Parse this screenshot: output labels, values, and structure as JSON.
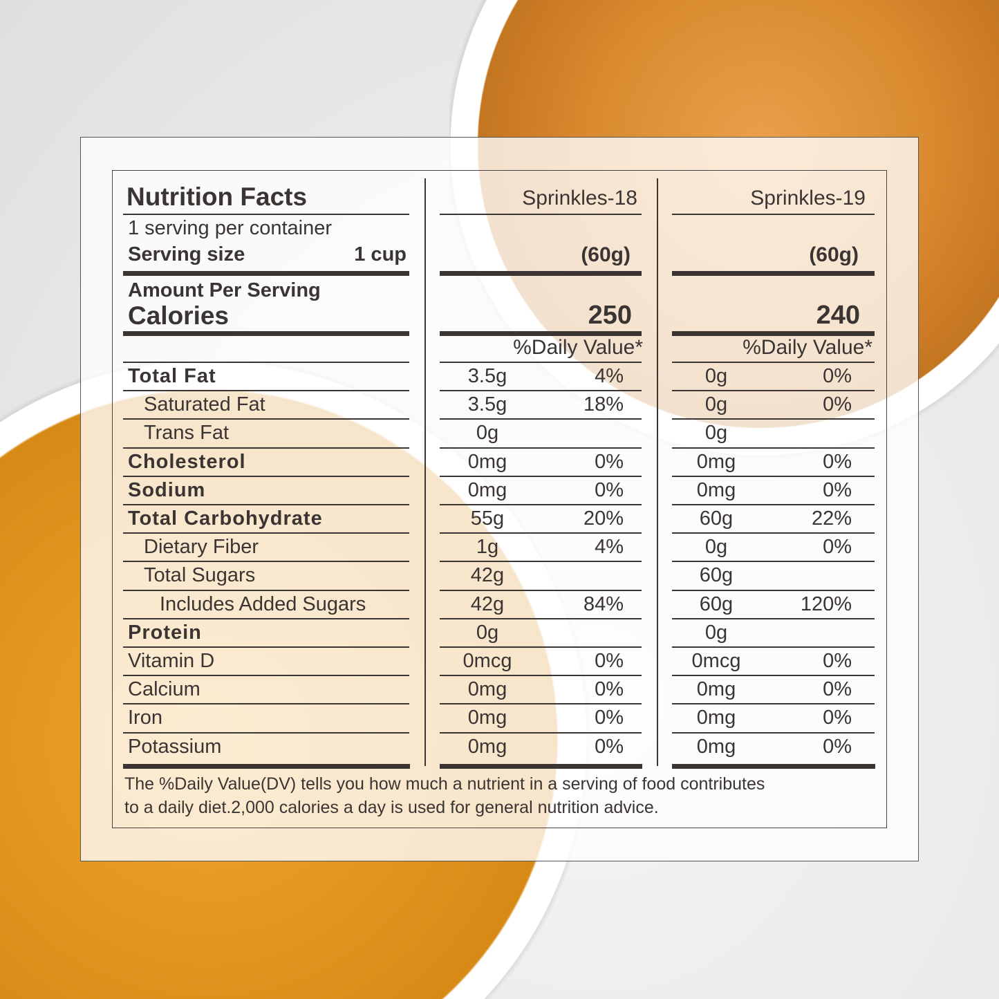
{
  "header": {
    "title": "Nutrition Facts",
    "servings": "1 serving per container",
    "serving_size_label": "Serving size",
    "serving_size_value": "1 cup",
    "amount_per_serving": "Amount Per Serving",
    "calories_label": "Calories",
    "daily_value_header": "%Daily Value*"
  },
  "products": [
    {
      "name": "Sprinkles-18",
      "serving_weight": "(60g)",
      "calories": "250"
    },
    {
      "name": "Sprinkles-19",
      "serving_weight": "(60g)",
      "calories": "240"
    }
  ],
  "rows": [
    {
      "label": "Total Fat",
      "bold": true,
      "indent": 0,
      "p1": [
        "3.5g",
        "4%"
      ],
      "p2": [
        "0g",
        "0%"
      ]
    },
    {
      "label": "Saturated  Fat",
      "bold": false,
      "indent": 1,
      "p1": [
        "3.5g",
        "18%"
      ],
      "p2": [
        "0g",
        "0%"
      ]
    },
    {
      "label": "Trans Fat",
      "bold": false,
      "indent": 1,
      "p1": [
        "0g",
        ""
      ],
      "p2": [
        "0g",
        ""
      ]
    },
    {
      "label": "Cholesterol",
      "bold": true,
      "indent": 0,
      "p1": [
        "0mg",
        "0%"
      ],
      "p2": [
        "0mg",
        "0%"
      ]
    },
    {
      "label": "Sodium",
      "bold": true,
      "indent": 0,
      "p1": [
        "0mg",
        "0%"
      ],
      "p2": [
        "0mg",
        "0%"
      ]
    },
    {
      "label": "Total Carbohydrate",
      "bold": true,
      "indent": 0,
      "p1": [
        "55g",
        "20%"
      ],
      "p2": [
        "60g",
        "22%"
      ]
    },
    {
      "label": "Dietary Fiber",
      "bold": false,
      "indent": 1,
      "p1": [
        "1g",
        "4%"
      ],
      "p2": [
        "0g",
        "0%"
      ]
    },
    {
      "label": "Total Sugars",
      "bold": false,
      "indent": 1,
      "p1": [
        "42g",
        ""
      ],
      "p2": [
        "60g",
        ""
      ]
    },
    {
      "label": "Includes Added Sugars",
      "bold": false,
      "indent": 2,
      "p1": [
        "42g",
        "84%"
      ],
      "p2": [
        "60g",
        "120%"
      ]
    },
    {
      "label": "Protein",
      "bold": true,
      "indent": 0,
      "p1": [
        "0g",
        ""
      ],
      "p2": [
        "0g",
        ""
      ]
    },
    {
      "label": "Vitamin D",
      "bold": false,
      "indent": 0,
      "p1": [
        "0mcg",
        "0%"
      ],
      "p2": [
        "0mcg",
        "0%"
      ]
    },
    {
      "label": "Calcium",
      "bold": false,
      "indent": 0,
      "p1": [
        "0mg",
        "0%"
      ],
      "p2": [
        "0mg",
        "0%"
      ]
    },
    {
      "label": "Iron",
      "bold": false,
      "indent": 0,
      "p1": [
        "0mg",
        "0%"
      ],
      "p2": [
        "0mg",
        "0%"
      ]
    },
    {
      "label": "Potassium",
      "bold": false,
      "indent": 0,
      "p1": [
        "0mg",
        "0%"
      ],
      "p2": [
        "0mg",
        "0%"
      ]
    }
  ],
  "footnote": {
    "line1": "The %Daily Value(DV) tells you how much a nutrient in a serving of food contributes",
    "line2": "to a daily diet.2,000 calories a day is used for general nutrition advice."
  },
  "colors": {
    "text": "#3a3433",
    "sugar": "#d98a2e",
    "stars": "#f0a52a"
  }
}
